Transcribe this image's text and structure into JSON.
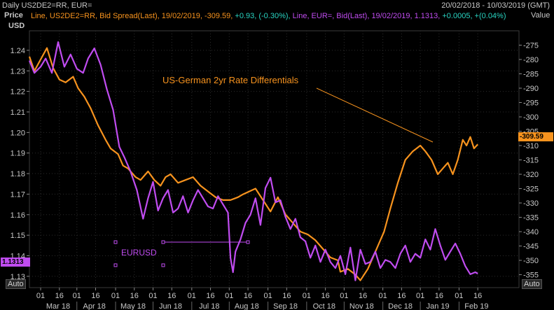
{
  "header": {
    "title": "Daily US2DE2=RR, EUR=",
    "date_range": "20/02/2018 - 10/03/2019 (GMT)",
    "left_axis_label": "Price",
    "left_axis_unit": "USD",
    "right_axis_label": "Value"
  },
  "legend": {
    "spread_line": "Line, US2DE2=RR, Bid Spread(Last), 19/02/2019, -309.59,",
    "spread_change": "+0.93, (-0.30%),",
    "eur_line": "Line, EUR=, Bid(Last), 19/02/2019, 1.1313,",
    "eur_change": "+0.0005, +(0.04%)"
  },
  "colors": {
    "spread": "#f7931e",
    "eur": "#c04cf0",
    "change": "#29d4c2",
    "grid": "#2c2c2c",
    "text": "#c8c8c8"
  },
  "buttons": {
    "auto_left": "Auto",
    "auto_right": "Auto"
  },
  "last_value_tags": {
    "eur": "1.1313",
    "spread": "-309.59"
  },
  "chart_data": {
    "type": "line",
    "x_axis_months": [
      "Mar 18",
      "Apr 18",
      "May 18",
      "Jun 18",
      "Jul 18",
      "Aug 18",
      "Sep 18",
      "Oct 18",
      "Nov 18",
      "Dec 18",
      "Jan 19",
      "Feb 19"
    ],
    "x_tick_labels": [
      "01",
      "16",
      "01",
      "16",
      "01",
      "16",
      "01",
      "16",
      "01",
      "16",
      "01",
      "16",
      "01",
      "16",
      "01",
      "16",
      "01",
      "16",
      "01",
      "16",
      "01",
      "16",
      "01",
      "16"
    ],
    "x_month_days": [
      0,
      29,
      60,
      90,
      121,
      151,
      182,
      213,
      243,
      274,
      304,
      335
    ],
    "x_range_days": [
      -9,
      383
    ],
    "left_axis": {
      "ylim": [
        1.1245,
        1.2495
      ],
      "ticks": [
        1.24,
        1.23,
        1.22,
        1.21,
        1.2,
        1.19,
        1.18,
        1.17,
        1.16,
        1.15,
        1.14,
        1.13
      ]
    },
    "right_axis": {
      "ylim": [
        -359.5,
        -270
      ],
      "ticks": [
        -275,
        -280,
        -285,
        -290,
        -295,
        -300,
        -305,
        -310,
        -315,
        -320,
        -325,
        -330,
        -335,
        -340,
        -345,
        -350,
        -355
      ]
    },
    "annotation": "US-German 2yr Rate Differentials",
    "drawing_label": "EURUSD",
    "series": [
      {
        "name": "US2DE2=RR Bid Spread",
        "axis": "right",
        "color_key": "spread",
        "x_days": [
          -9,
          -5,
          0,
          5,
          10,
          15,
          20,
          26,
          30,
          35,
          40,
          46,
          52,
          56,
          62,
          66,
          70,
          76,
          80,
          86,
          91,
          96,
          100,
          104,
          110,
          116,
          122,
          128,
          134,
          140,
          146,
          152,
          158,
          162,
          167,
          172,
          178,
          184,
          190,
          196,
          202,
          208,
          214,
          220,
          226,
          232,
          238,
          240,
          246,
          252,
          256,
          262,
          266,
          270,
          275,
          280,
          286,
          292,
          298,
          304,
          308,
          313,
          318,
          322,
          326,
          330,
          334,
          338,
          341,
          344,
          347,
          350
        ],
        "values": [
          -279,
          -284,
          -280,
          -276,
          -283,
          -287,
          -288,
          -286,
          -290,
          -293,
          -297,
          -303,
          -308,
          -311,
          -313,
          -317,
          -318,
          -321,
          -322,
          -319,
          -322,
          -324,
          -321,
          -320,
          -323,
          -322,
          -321,
          -324,
          -326,
          -328,
          -329,
          -329,
          -328,
          -327,
          -326,
          -325,
          -329,
          -333,
          -328,
          -334,
          -337,
          -340,
          -341,
          -343,
          -346,
          -349,
          -350,
          -354,
          -353,
          -355,
          -357,
          -353,
          -349,
          -345,
          -340,
          -332,
          -323,
          -315,
          -312,
          -310,
          -312,
          -315,
          -320,
          -318,
          -316,
          -320,
          -315,
          -308,
          -310,
          -307,
          -311,
          -309.59
        ]
      },
      {
        "name": "EUR= Bid",
        "axis": "left",
        "color_key": "eur",
        "x_days": [
          -9,
          -5,
          0,
          4,
          9,
          14,
          19,
          24,
          29,
          34,
          38,
          43,
          48,
          53,
          58,
          63,
          67,
          72,
          77,
          82,
          86,
          90,
          94,
          98,
          102,
          106,
          110,
          114,
          118,
          122,
          126,
          130,
          134,
          138,
          142,
          146,
          150,
          152,
          154,
          156,
          160,
          164,
          168,
          172,
          176,
          180,
          184,
          188,
          192,
          196,
          200,
          204,
          208,
          212,
          216,
          220,
          224,
          228,
          232,
          236,
          240,
          244,
          248,
          252,
          256,
          260,
          264,
          268,
          272,
          276,
          280,
          284,
          288,
          292,
          296,
          300,
          304,
          308,
          312,
          316,
          320,
          324,
          328,
          332,
          336,
          340,
          344,
          348,
          350
        ],
        "values": [
          1.235,
          1.229,
          1.232,
          1.236,
          1.229,
          1.244,
          1.232,
          1.238,
          1.231,
          1.229,
          1.236,
          1.241,
          1.233,
          1.221,
          1.211,
          1.193,
          1.188,
          1.181,
          1.172,
          1.158,
          1.168,
          1.176,
          1.162,
          1.168,
          1.172,
          1.161,
          1.163,
          1.169,
          1.161,
          1.167,
          1.172,
          1.168,
          1.164,
          1.163,
          1.169,
          1.165,
          1.161,
          1.139,
          1.132,
          1.142,
          1.148,
          1.156,
          1.16,
          1.168,
          1.155,
          1.173,
          1.178,
          1.166,
          1.167,
          1.159,
          1.153,
          1.158,
          1.149,
          1.147,
          1.139,
          1.145,
          1.137,
          1.143,
          1.137,
          1.134,
          1.14,
          1.131,
          1.144,
          1.128,
          1.143,
          1.136,
          1.137,
          1.142,
          1.134,
          1.138,
          1.137,
          1.134,
          1.141,
          1.145,
          1.137,
          1.141,
          1.139,
          1.148,
          1.143,
          1.153,
          1.145,
          1.138,
          1.142,
          1.146,
          1.141,
          1.135,
          1.131,
          1.132,
          1.1313
        ]
      }
    ]
  }
}
